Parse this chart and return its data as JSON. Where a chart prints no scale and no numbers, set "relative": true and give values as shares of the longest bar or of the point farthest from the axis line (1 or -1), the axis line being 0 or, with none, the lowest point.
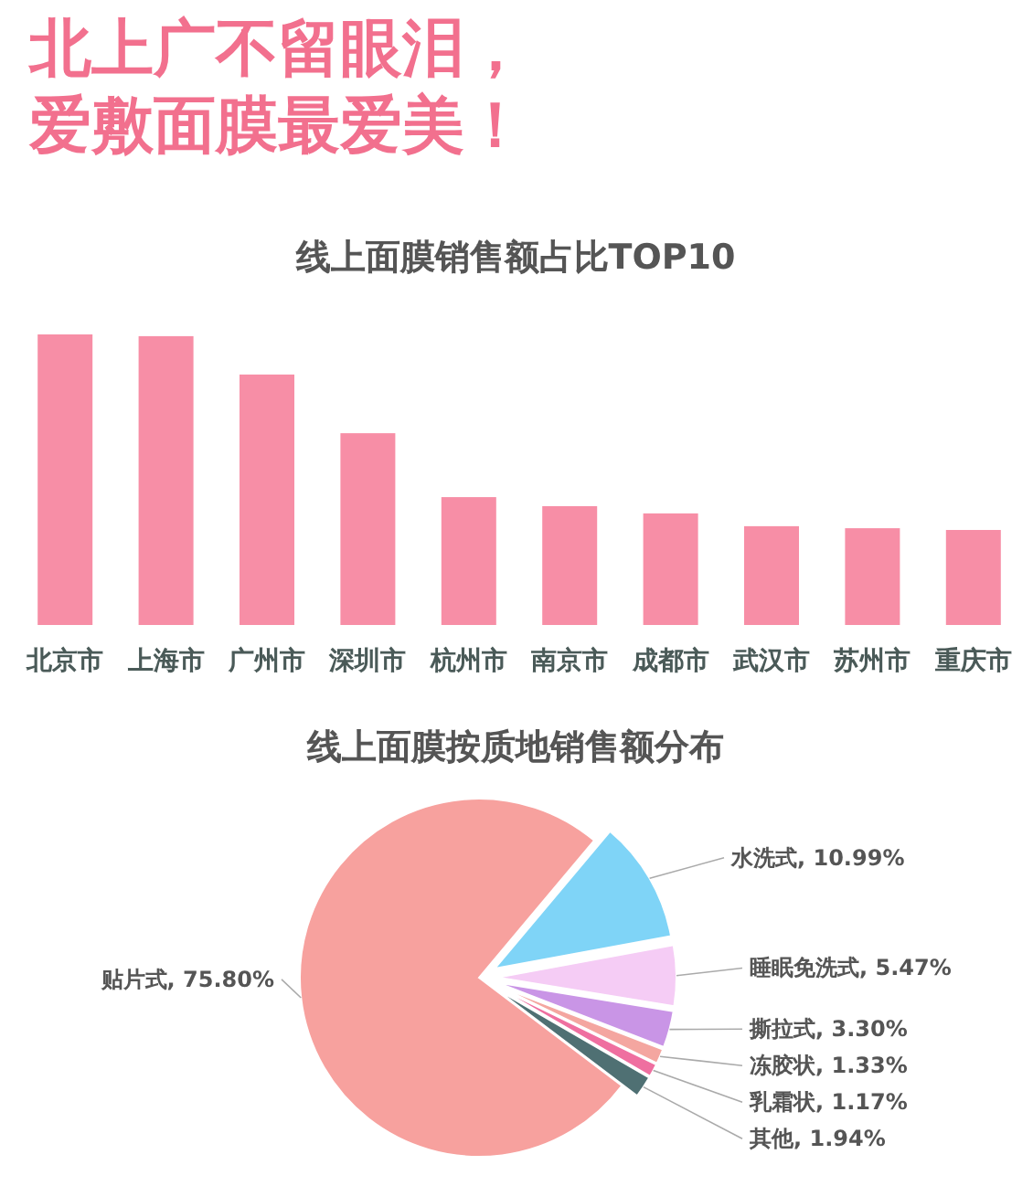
{
  "chart_data": [
    {
      "type": "bar",
      "annotations": [
        "北上广不留眼泪，",
        "爱敷面膜最爱美！"
      ],
      "title": "线上面膜销售额占比TOP10",
      "relative": true,
      "color": "#f78ea6",
      "categories": [
        "北京市",
        "上海市",
        "广州市",
        "深圳市",
        "杭州市",
        "南京市",
        "成都市",
        "武汉市",
        "苏州市",
        "重庆市"
      ],
      "values": [
        1,
        0.994,
        0.862,
        0.66,
        0.44,
        0.409,
        0.384,
        0.34,
        0.333,
        0.327
      ]
    },
    {
      "type": "pie",
      "title": "线上面膜按质地销售额分布",
      "categories": [
        "贴片式",
        "水洗式",
        "睡眠免洗式",
        "撕拉式",
        "冻胶状",
        "乳霜状",
        "其他"
      ],
      "values": [
        75.8,
        10.99,
        5.47,
        3.3,
        1.33,
        1.17,
        1.94
      ],
      "value_labels": [
        "75.80%",
        "10.99%",
        "5.47%",
        "3.30%",
        "1.33%",
        "1.17%",
        "1.94%"
      ],
      "colors": [
        "#f7a19e",
        "#7fd4f7",
        "#f5ccf5",
        "#c995e6",
        "#f4a6a0",
        "#ef6fa0",
        "#4f7073"
      ]
    }
  ]
}
